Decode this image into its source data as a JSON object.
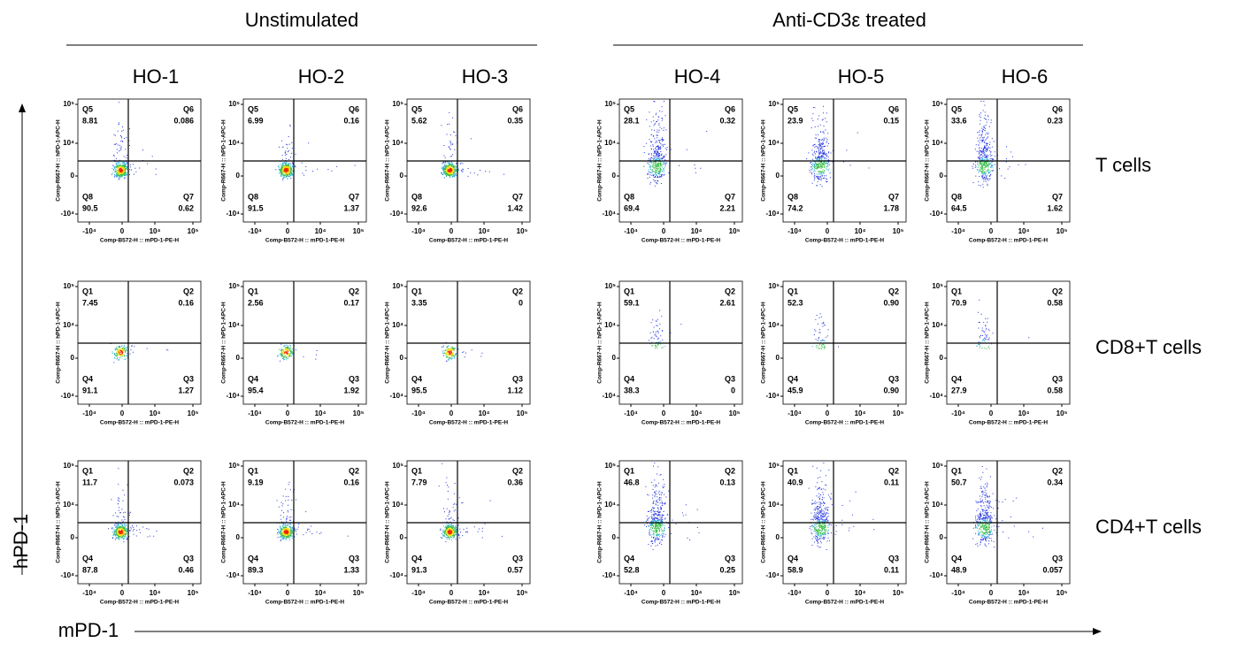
{
  "groups": [
    "Unstimulated",
    "Anti-CD3ε treated"
  ],
  "samples": [
    "HO-1",
    "HO-2",
    "HO-3",
    "HO-4",
    "HO-5",
    "HO-6"
  ],
  "rows": [
    {
      "label": "T  cells",
      "quadrants": [
        "Q5",
        "Q6",
        "Q8",
        "Q7"
      ],
      "values": [
        [
          "8.81",
          "0.086",
          "90.5",
          "0.62"
        ],
        [
          "6.99",
          "0.16",
          "91.5",
          "1.37"
        ],
        [
          "5.62",
          "0.35",
          "92.6",
          "1.42"
        ],
        [
          "28.1",
          "0.32",
          "69.4",
          "2.21"
        ],
        [
          "23.9",
          "0.15",
          "74.2",
          "1.78"
        ],
        [
          "33.6",
          "0.23",
          "64.5",
          "1.62"
        ]
      ]
    },
    {
      "label": "CD8+T  cells",
      "quadrants": [
        "Q1",
        "Q2",
        "Q4",
        "Q3"
      ],
      "values": [
        [
          "7.45",
          "0.16",
          "91.1",
          "1.27"
        ],
        [
          "2.56",
          "0.17",
          "95.4",
          "1.92"
        ],
        [
          "3.35",
          "0",
          "95.5",
          "1.12"
        ],
        [
          "59.1",
          "2.61",
          "38.3",
          "0"
        ],
        [
          "52.3",
          "0.90",
          "45.9",
          "0.90"
        ],
        [
          "70.9",
          "0.58",
          "27.9",
          "0.58"
        ]
      ]
    },
    {
      "label": "CD4+T  cells",
      "quadrants": [
        "Q1",
        "Q2",
        "Q4",
        "Q3"
      ],
      "values": [
        [
          "11.7",
          "0.073",
          "87.8",
          "0.46"
        ],
        [
          "9.19",
          "0.16",
          "89.3",
          "1.33"
        ],
        [
          "7.79",
          "0.36",
          "91.3",
          "0.57"
        ],
        [
          "46.8",
          "0.13",
          "52.8",
          "0.25"
        ],
        [
          "40.9",
          "0.11",
          "58.9",
          "0.11"
        ],
        [
          "50.7",
          "0.34",
          "48.9",
          "0.057"
        ]
      ]
    }
  ],
  "x_axis_title": "Comp-B572-H :: mPD-1-PE-H",
  "y_axis_title": "Comp-R667-H :: hPD-1-APC-H",
  "x_ticks": [
    "-10⁴",
    "0",
    "10⁴",
    "10⁵"
  ],
  "y_ticks": [
    "10⁵",
    "10⁴",
    "0",
    "-10⁴"
  ],
  "x_label": "mPD-1",
  "y_label": "hPD-1"
}
